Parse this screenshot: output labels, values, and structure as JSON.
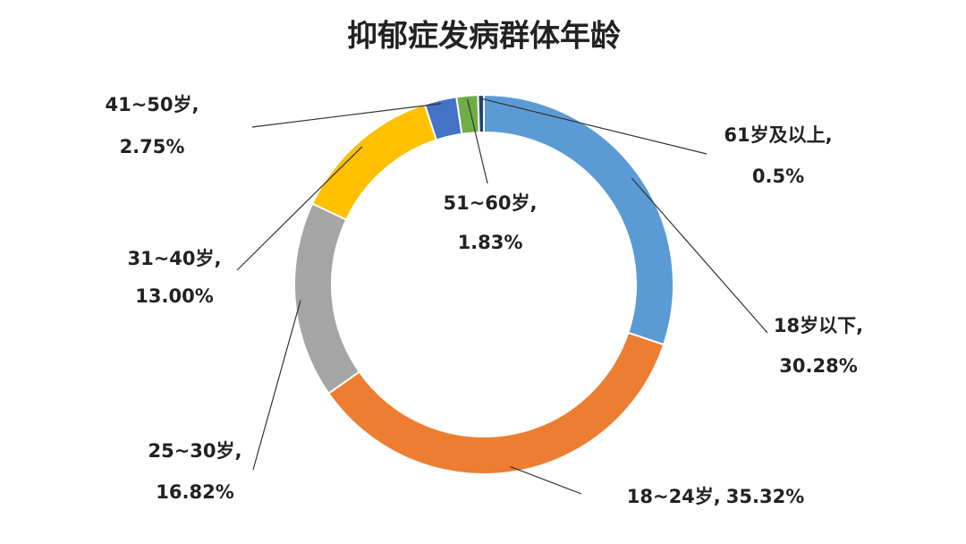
{
  "chart_data": {
    "type": "pie",
    "title": "抑郁症发病群体年龄",
    "categories": [
      "18岁以下,",
      "18~24岁,",
      "25~30岁,",
      "31~40岁,",
      "41~50岁,",
      "51~60岁,",
      "61岁及以上,"
    ],
    "values": [
      30.28,
      35.32,
      16.82,
      13.0,
      2.75,
      1.83,
      0.5
    ],
    "value_labels": [
      "30.28%",
      "35.32%",
      "16.82%",
      "13.00%",
      "2.75%",
      "1.83%",
      "0.5%"
    ],
    "colors": [
      "#5b9bd5",
      "#ed7d31",
      "#a5a5a5",
      "#ffc000",
      "#4472c4",
      "#70ad47",
      "#264478"
    ],
    "donut": true
  }
}
